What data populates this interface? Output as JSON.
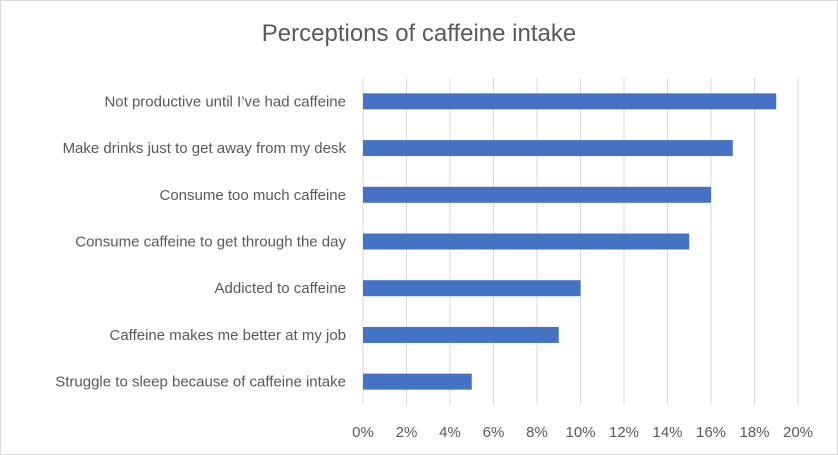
{
  "chart_data": {
    "type": "bar",
    "orientation": "horizontal",
    "title": "Perceptions of caffeine intake",
    "categories": [
      "Not productive until I’ve had caffeine",
      "Make drinks just to get away from my desk",
      "Consume too much caffeine",
      "Consume caffeine to get through the day",
      "Addicted to caffeine",
      "Caffeine makes me better at my job",
      "Struggle to sleep because of caffeine intake"
    ],
    "values": [
      19,
      17,
      16,
      15,
      10,
      9,
      5
    ],
    "unit": "%",
    "xlim": [
      0,
      20
    ],
    "x_ticks": [
      "0%",
      "2%",
      "4%",
      "6%",
      "8%",
      "10%",
      "12%",
      "14%",
      "16%",
      "18%",
      "20%"
    ],
    "grid": true,
    "legend": "none",
    "bar_color": "#4472c4",
    "gridline_color": "#d9d9d9"
  }
}
